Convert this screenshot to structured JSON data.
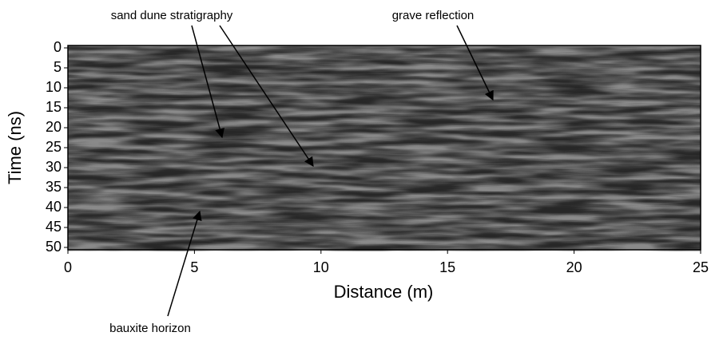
{
  "chart_data": {
    "type": "radargram",
    "xlabel": "Distance (m)",
    "ylabel": "Time (ns)",
    "xlim": [
      0,
      25
    ],
    "xticks": [
      0,
      5,
      10,
      15,
      20,
      25
    ],
    "ylim": [
      0,
      50
    ],
    "yticks": [
      0,
      5,
      10,
      15,
      20,
      25,
      30,
      35,
      40,
      45,
      50
    ],
    "invert_y": true,
    "annotations": [
      "sand dune stratigraphy",
      "grave reflection",
      "bauxite horizon"
    ]
  }
}
